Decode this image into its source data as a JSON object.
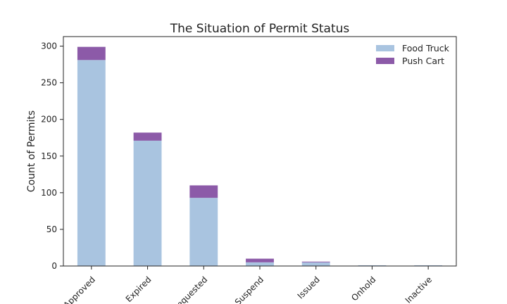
{
  "chart_data": {
    "type": "bar",
    "stacked": true,
    "title": "The Situation of Permit Status",
    "xlabel": "",
    "ylabel": "Count of Permits",
    "categories": [
      "Approved",
      "Expired",
      "Requested",
      "Suspend",
      "Issued",
      "Onhold",
      "Inactive"
    ],
    "series": [
      {
        "name": "Food Truck",
        "values": [
          281,
          171,
          93,
          5,
          5,
          1,
          1
        ],
        "color": "#a9c4e0"
      },
      {
        "name": "Push Cart",
        "values": [
          18,
          11,
          17,
          5,
          1,
          0,
          0
        ],
        "color": "#8c5aa8"
      }
    ],
    "ylim": [
      0,
      313
    ],
    "yticks": [
      0,
      50,
      100,
      150,
      200,
      250,
      300
    ],
    "legend": "top-right",
    "grid": false
  }
}
